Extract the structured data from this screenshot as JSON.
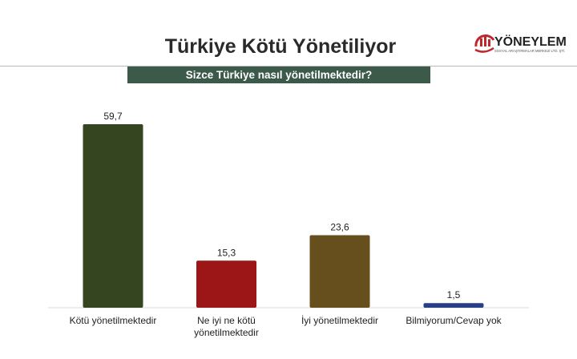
{
  "logo": {
    "name": "YÖNEYLEM",
    "tagline": "SOSYAL ARAŞTIRMALAR MERKEZİ LTD. ŞTİ."
  },
  "title": "Türkiye Kötü Yönetiliyor",
  "question": "Sizce Türkiye nasıl yönetilmektedir?",
  "chart_data": {
    "type": "bar",
    "title": "Türkiye Kötü Yönetiliyor",
    "subtitle": "Sizce Türkiye nasıl yönetilmektedir?",
    "categories": [
      "Kötü yönetilmektedir",
      "Ne iyi ne kötü yönetilmektedir",
      "İyi yönetilmektedir",
      "Bilmiyorum/Cevap yok"
    ],
    "values": [
      59.7,
      15.3,
      23.6,
      1.5
    ],
    "value_labels": [
      "59,7",
      "15,3",
      "23,6",
      "1,5"
    ],
    "colors": [
      "#34451f",
      "#9c1618",
      "#664f1c",
      "#283e86"
    ],
    "ylim": [
      0,
      60
    ],
    "grid": false,
    "xlabel": "",
    "ylabel": ""
  }
}
